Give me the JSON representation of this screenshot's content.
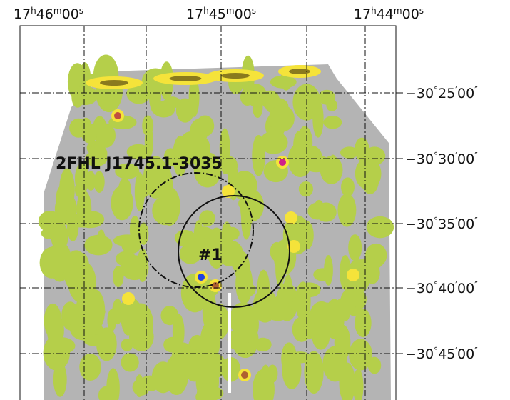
{
  "ra_labels": [
    [
      "17",
      "h",
      "46",
      "m",
      "00",
      "s"
    ],
    [
      "17",
      "h",
      "45",
      "m",
      "00",
      "s"
    ],
    [
      "17",
      "h",
      "44",
      "m",
      "00",
      "s"
    ]
  ],
  "dec_labels": [
    [
      "−30",
      "°",
      "25",
      "′",
      "00",
      "″"
    ],
    [
      "−30",
      "°",
      "30",
      "′",
      "00",
      "″"
    ],
    [
      "−30",
      "°",
      "35",
      "′",
      "00",
      "″"
    ],
    [
      "−30",
      "°",
      "40",
      "′",
      "00",
      "″"
    ],
    [
      "−30",
      "°",
      "45",
      "′",
      "00",
      "″"
    ]
  ],
  "annotations": {
    "source_name": "2FHL J1745.1-3035",
    "candidate": "#1"
  }
}
